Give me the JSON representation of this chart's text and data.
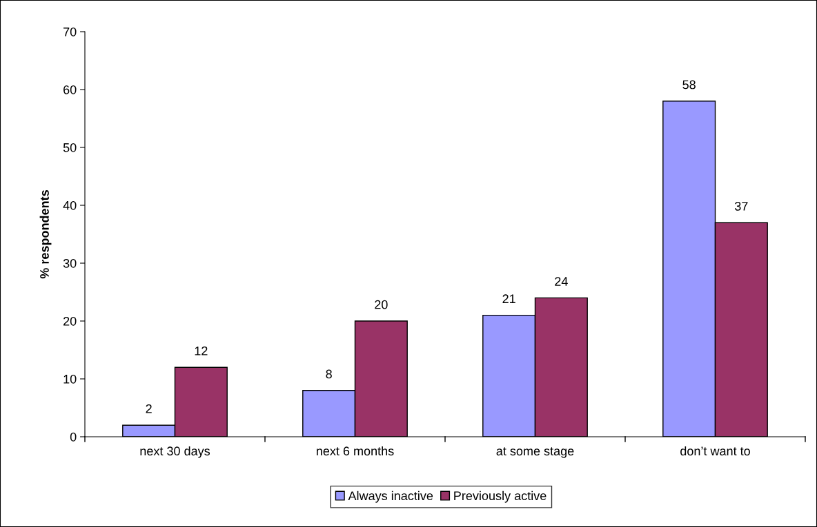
{
  "chart_data": {
    "type": "bar",
    "ylabel": "% respondents",
    "categories": [
      "next 30 days",
      "next 6 months",
      "at some stage",
      "don’t want to"
    ],
    "series": [
      {
        "name": "Always inactive",
        "color": "#9999ff",
        "values": [
          2,
          8,
          21,
          58
        ]
      },
      {
        "name": "Previously active",
        "color": "#993366",
        "values": [
          12,
          20,
          24,
          37
        ]
      }
    ],
    "ylim": [
      0,
      70
    ],
    "yticks": [
      0,
      10,
      20,
      30,
      40,
      50,
      60,
      70
    ],
    "data_labels": true,
    "grid": false,
    "legend": "bottom"
  }
}
